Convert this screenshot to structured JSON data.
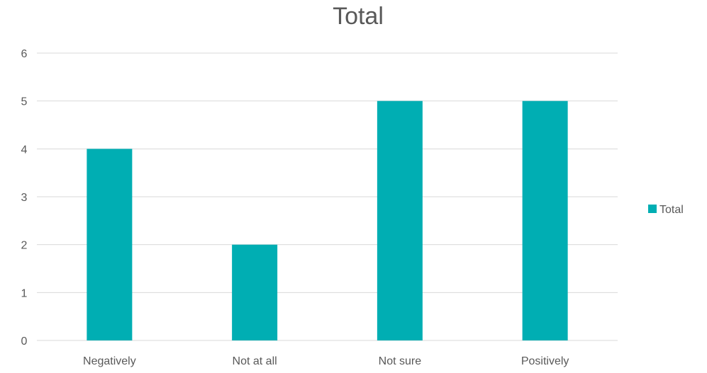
{
  "chart_data": {
    "type": "bar",
    "title": "Total",
    "categories": [
      "Negatively",
      "Not at all",
      "Not sure",
      "Positively"
    ],
    "series": [
      {
        "name": "Total",
        "values": [
          4,
          2,
          5,
          5
        ],
        "color": "#00AEB3"
      }
    ],
    "xlabel": "",
    "ylabel": "",
    "ylim": [
      0,
      6
    ],
    "yticks": [
      "0",
      "1",
      "2",
      "3",
      "4",
      "5",
      "6"
    ],
    "grid": true,
    "legend": {
      "position": "right",
      "entries": [
        "Total"
      ]
    }
  }
}
